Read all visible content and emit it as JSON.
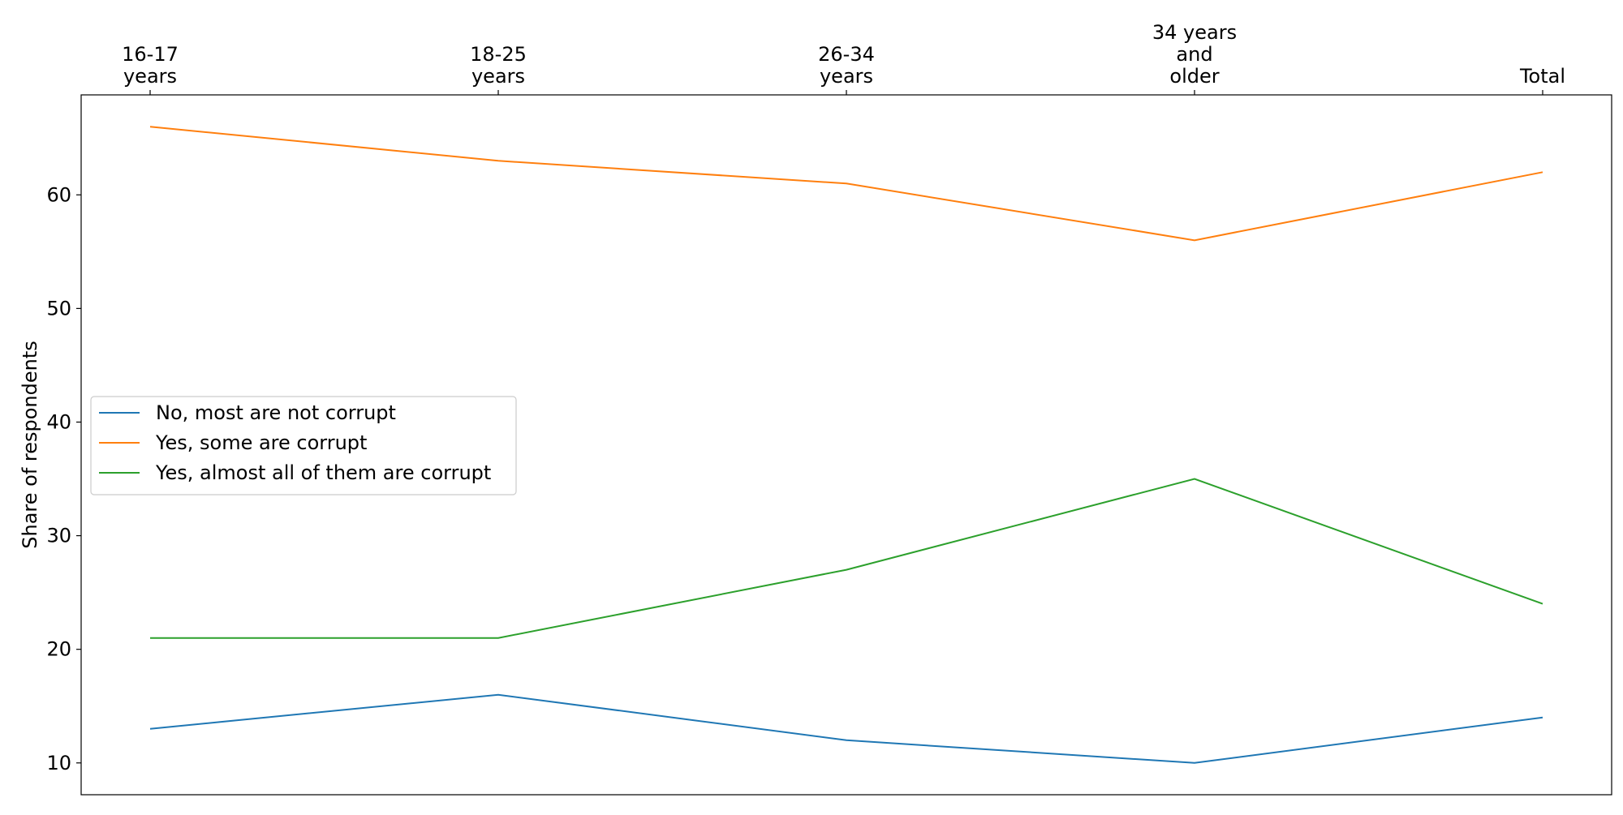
{
  "chart_data": {
    "type": "line",
    "title": "",
    "xlabel": "",
    "ylabel": "Share of respondents",
    "x_axis_position": "top",
    "categories": [
      [
        "16-17",
        "years"
      ],
      [
        "18-25",
        "years"
      ],
      [
        "26-34",
        "years"
      ],
      [
        "34 years",
        "and",
        "older"
      ],
      [
        "Total"
      ]
    ],
    "yticks": [
      10,
      20,
      30,
      40,
      50,
      60
    ],
    "ylim": [
      7.2,
      68.8
    ],
    "grid": false,
    "legend_position": "center-left",
    "series": [
      {
        "name": "No, most are not corrupt",
        "color": "#1f77b4",
        "values": [
          13,
          16,
          12,
          10,
          14
        ]
      },
      {
        "name": "Yes, some are corrupt",
        "color": "#ff7f0e",
        "values": [
          66,
          63,
          61,
          56,
          62
        ]
      },
      {
        "name": "Yes, almost all of them are corrupt",
        "color": "#2ca02c",
        "values": [
          21,
          21,
          27,
          35,
          24
        ]
      }
    ]
  }
}
